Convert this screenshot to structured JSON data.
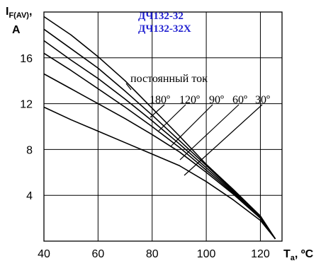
{
  "chart_data": {
    "type": "line",
    "title_lines": [
      "ДЧ132-32",
      "ДЧ132-32Х"
    ],
    "ylabel": {
      "main": "I",
      "sub": "F(AV)",
      "tail": ",",
      "unit": "A"
    },
    "xlabel": {
      "main": "T",
      "sub": "a",
      "tail": ", ºC"
    },
    "xlim": [
      40,
      128
    ],
    "ylim": [
      0,
      20
    ],
    "x_ticks": [
      40,
      60,
      80,
      100,
      120
    ],
    "x_tick_labels": [
      "40",
      "60",
      "80",
      "100",
      "120"
    ],
    "y_ticks": [
      4,
      8,
      12,
      16
    ],
    "y_tick_labels": [
      "4",
      "8",
      "12",
      "16"
    ],
    "grid": true,
    "annotations": {
      "dc": "постоянный ток",
      "angles": [
        "180º",
        "120º",
        "90º",
        "60º",
        "30º"
      ]
    },
    "series": [
      {
        "x": [
          40,
          50,
          60,
          70,
          80,
          90,
          100,
          110,
          120,
          125.5
        ],
        "y": [
          19.6,
          18.0,
          16.1,
          14.0,
          11.6,
          9.2,
          6.7,
          4.5,
          2.2,
          0.2
        ]
      },
      {
        "x": [
          40,
          50,
          60,
          70,
          80,
          90,
          100,
          110,
          120,
          125.5
        ],
        "y": [
          18.5,
          16.8,
          15.1,
          13.1,
          11.0,
          8.8,
          6.6,
          4.4,
          2.1,
          0.2
        ]
      },
      {
        "x": [
          40,
          50,
          60,
          70,
          80,
          90,
          100,
          110,
          120,
          125.5
        ],
        "y": [
          17.5,
          15.8,
          14.2,
          12.4,
          10.5,
          8.5,
          6.4,
          4.3,
          2.1,
          0.2
        ]
      },
      {
        "x": [
          40,
          50,
          60,
          70,
          80,
          90,
          100,
          110,
          120,
          125.5
        ],
        "y": [
          16.4,
          14.9,
          13.3,
          11.7,
          10.0,
          8.2,
          6.2,
          4.2,
          2.0,
          0.2
        ]
      },
      {
        "x": [
          40,
          50,
          60,
          70,
          80,
          90,
          100,
          110,
          120,
          125.5
        ],
        "y": [
          14.6,
          13.3,
          12.0,
          10.7,
          9.3,
          7.8,
          6.0,
          4.1,
          2.0,
          0.2
        ]
      },
      {
        "x": [
          40,
          50,
          60,
          70,
          80,
          90,
          100,
          110,
          120,
          125.5
        ],
        "y": [
          11.7,
          10.6,
          9.6,
          8.6,
          7.6,
          6.6,
          5.2,
          3.6,
          1.8,
          0.2
        ]
      }
    ]
  }
}
